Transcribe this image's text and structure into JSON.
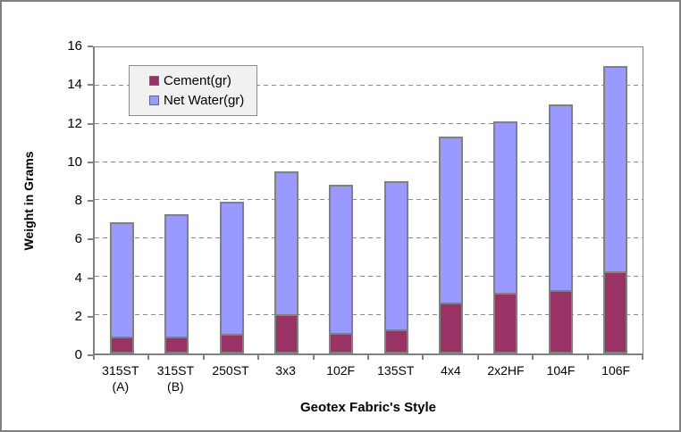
{
  "chart_data": {
    "type": "bar",
    "stacked": true,
    "title": "",
    "xlabel": "Geotex Fabric's Style",
    "ylabel": "Weight in Grams",
    "categories": [
      "315ST\n(A)",
      "315ST\n(B)",
      "250ST",
      "3x3",
      "102F",
      "135ST",
      "4x4",
      "2x2HF",
      "104F",
      "106F"
    ],
    "series": [
      {
        "name": "Cement(gr)",
        "color": "#993366",
        "values": [
          0.8,
          0.8,
          0.95,
          1.95,
          1.0,
          1.15,
          2.55,
          3.1,
          3.2,
          4.2
        ]
      },
      {
        "name": "Net Water(gr)",
        "color": "#9999FF",
        "values": [
          6.05,
          6.5,
          7.0,
          7.55,
          7.8,
          7.85,
          8.8,
          9.05,
          9.8,
          10.8
        ]
      }
    ],
    "stack_totals": [
      6.85,
      7.3,
      7.95,
      9.5,
      8.8,
      9.0,
      11.35,
      12.15,
      13.0,
      15.0
    ],
    "y_ticks": [
      0,
      2,
      4,
      6,
      8,
      10,
      12,
      14,
      16
    ],
    "ylim": [
      0,
      16
    ],
    "grid": "horizontal-dashed",
    "legend_position": "top-left-inside-plot",
    "colors": {
      "axis": "#808080",
      "gridline": "#8a8a8a",
      "legend_background": "#f1f1f1",
      "chart_background": "#ffffff",
      "frame_border": "#7f7f7f"
    }
  }
}
